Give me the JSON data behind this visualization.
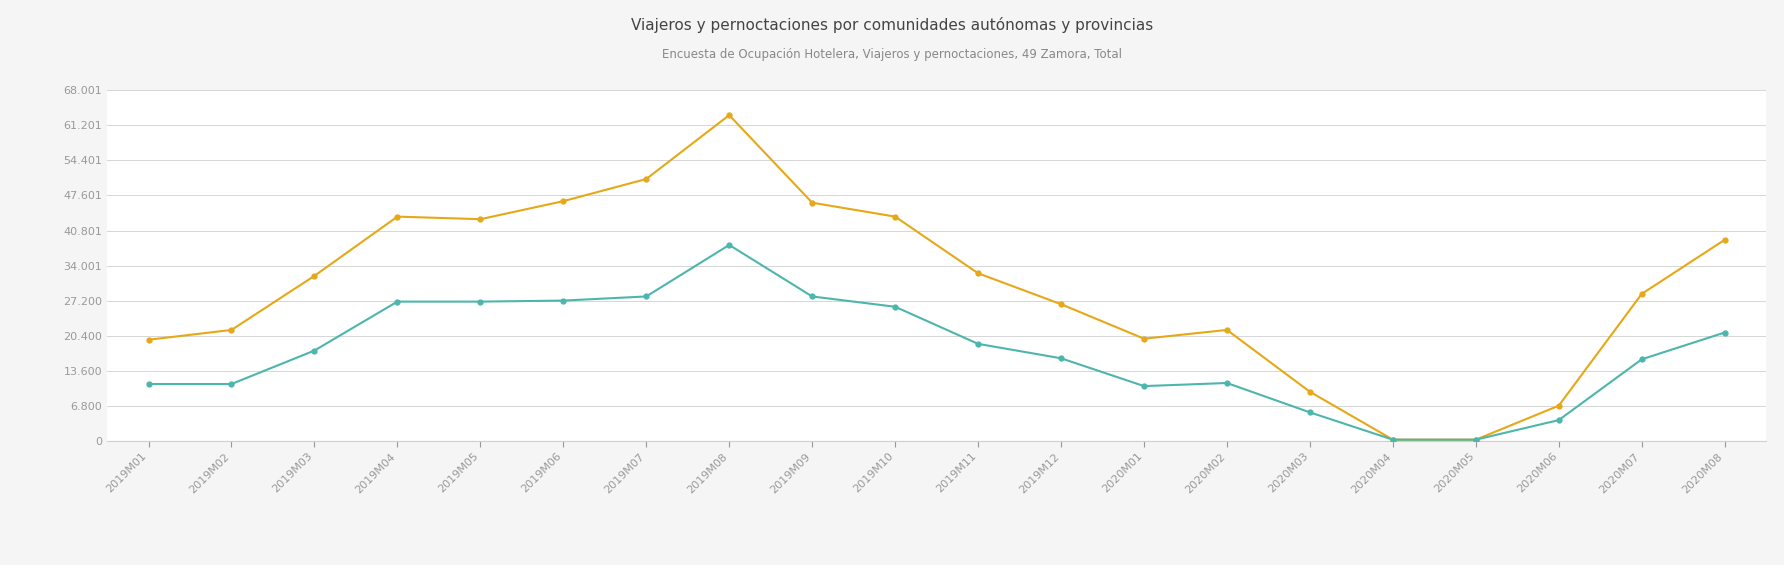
{
  "title": "Viajeros y pernoctaciones por comunidades autónomas y provincias",
  "subtitle": "Encuesta de Ocupación Hotelera, Viajeros y pernoctaciones, 49 Zamora, Total",
  "x_labels": [
    "2019M01",
    "2019M02",
    "2019M03",
    "2019M04",
    "2019M05",
    "2019M06",
    "2019M07",
    "2019M08",
    "2019M09",
    "2019M10",
    "2019M11",
    "2019M12",
    "2020M01",
    "2020M02",
    "2020M03",
    "2020M04",
    "2020M05",
    "2020M06",
    "2020M07",
    "2020M08"
  ],
  "pernoctaciones": [
    19600,
    21500,
    32000,
    43500,
    43000,
    46500,
    50800,
    63200,
    46200,
    43500,
    32500,
    26500,
    19800,
    21500,
    9500,
    200,
    200,
    6800,
    28500,
    39000
  ],
  "viajeros": [
    11000,
    11000,
    17500,
    27000,
    27000,
    27200,
    28000,
    38000,
    28000,
    26000,
    18800,
    16000,
    10600,
    11200,
    5500,
    200,
    200,
    4000,
    15800,
    21000
  ],
  "line_color_pernoctaciones": "#e6a817",
  "line_color_viajeros": "#4db6ac",
  "ylim": [
    0,
    68001
  ],
  "yticks": [
    0,
    6800,
    13600,
    20400,
    27200,
    34001,
    40801,
    47601,
    54401,
    61201,
    68001
  ],
  "ytick_labels": [
    "0",
    "6.800",
    "13.600",
    "20.400",
    "27.200",
    "34.001",
    "40.801",
    "47.601",
    "54.401",
    "61.201",
    "68.001"
  ],
  "bg_color": "#f5f5f5",
  "plot_bg_color": "#ffffff",
  "grid_color": "#d0d0d0",
  "title_color": "#444444",
  "subtitle_color": "#888888",
  "tick_color": "#999999",
  "title_fontsize": 11,
  "subtitle_fontsize": 8.5,
  "tick_fontsize": 8
}
